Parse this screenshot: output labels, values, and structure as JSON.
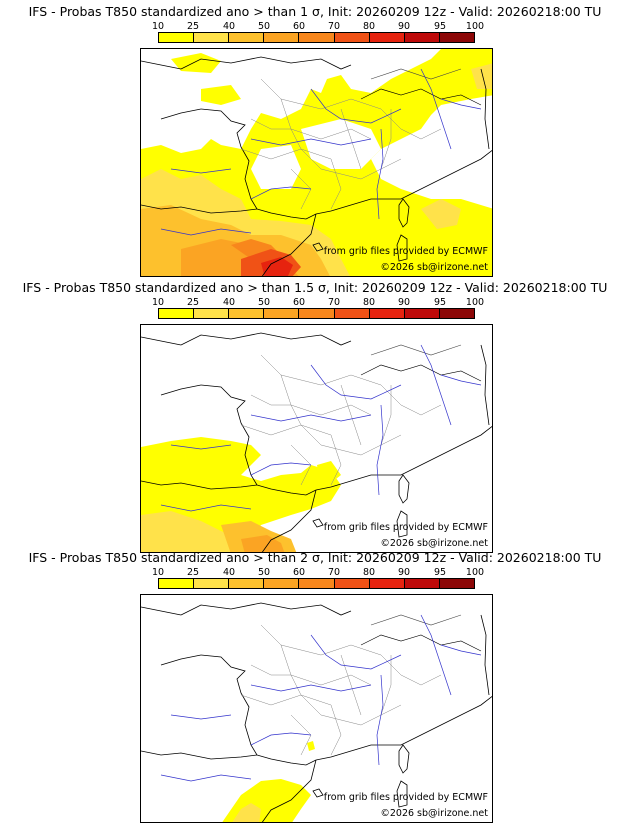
{
  "colorbar": {
    "ticks": [
      "10",
      "25",
      "40",
      "50",
      "60",
      "70",
      "80",
      "90",
      "95",
      "100"
    ],
    "colors": [
      "#ffff00",
      "#ffe24a",
      "#fdc12d",
      "#fba423",
      "#f8871c",
      "#f05216",
      "#e6230f",
      "#be0a0a",
      "#8c0707",
      "#5a0404"
    ]
  },
  "panels": [
    {
      "title": "IFS - Probas T850  standardized ano > than 1 σ, Init: 20260209 12z - Valid: 20260218:00 TU",
      "credit_line1": "from grib files provided by ECMWF",
      "credit_line2": "©2026 sb@irizone.net",
      "coverage": "high"
    },
    {
      "title": "IFS - Probas T850  standardized ano > than 1.5 σ, Init: 20260209 12z - Valid: 20260218:00 TU",
      "credit_line1": "from grib files provided by ECMWF",
      "credit_line2": "©2026 sb@irizone.net",
      "coverage": "medium"
    },
    {
      "title": "IFS - Probas T850  standardized ano > than 2 σ, Init: 20260209 12z - Valid: 20260218:00 TU",
      "credit_line1": "from grib files provided by ECMWF",
      "credit_line2": "©2026 sb@irizone.net",
      "coverage": "low"
    }
  ]
}
